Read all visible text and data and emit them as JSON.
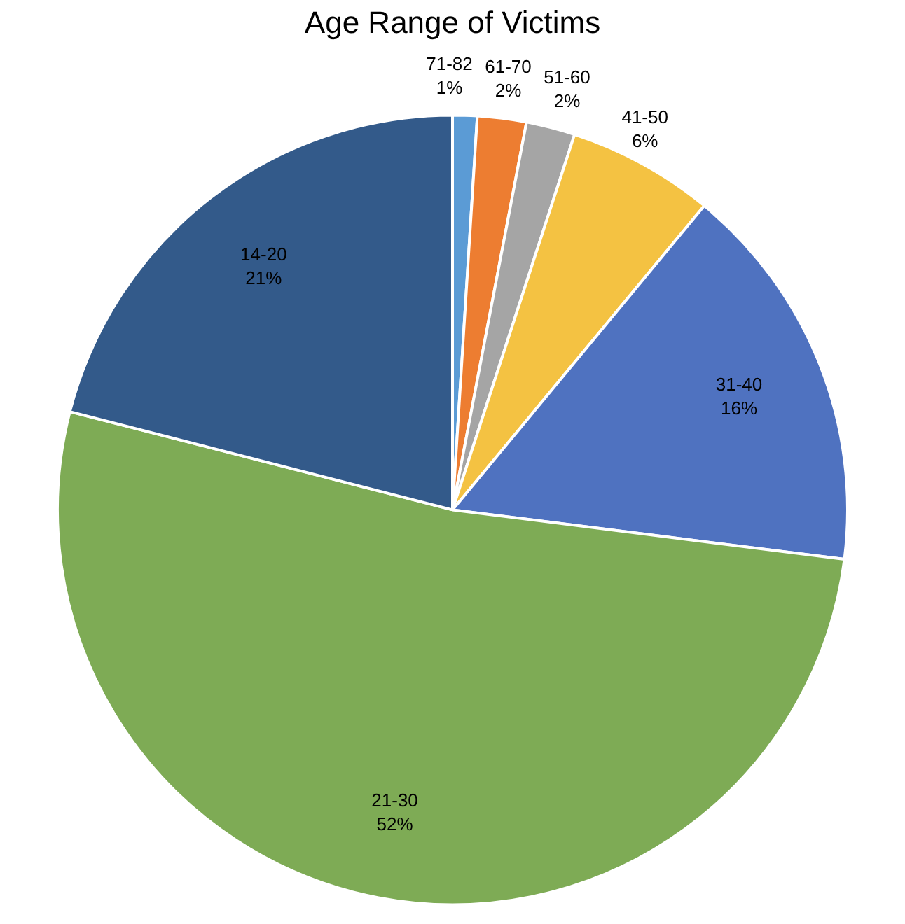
{
  "chart_data": {
    "type": "pie",
    "title": "Age Range of Victims",
    "categories": [
      "71-82",
      "61-70",
      "51-60",
      "41-50",
      "31-40",
      "21-30",
      "14-20"
    ],
    "values": [
      1,
      2,
      2,
      6,
      16,
      52,
      21
    ],
    "value_labels": [
      "1%",
      "2%",
      "2%",
      "6%",
      "16%",
      "52%",
      "21%"
    ],
    "colors": [
      "#5b9bd5",
      "#ed7d31",
      "#a5a5a5",
      "#f4c242",
      "#4f72c0",
      "#7eab55",
      "#335a8a"
    ],
    "legend": false
  }
}
